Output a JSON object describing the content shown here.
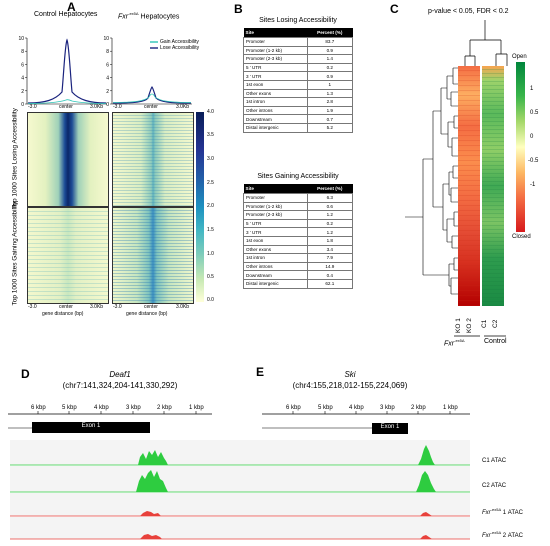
{
  "panel_a": {
    "letter": "A",
    "left_title": "Control Hepatocytes",
    "right_title_gene": "Fxr",
    "right_title_sup": "-ex5Δ",
    "right_title_rest": " Hepatocytes",
    "legend": [
      "Gain Accessibility",
      "Lose Accessibility"
    ],
    "colors": {
      "gain": "#2ec4b6",
      "lose": "#1a237e"
    },
    "y_ticks": [
      "10",
      "8",
      "6",
      "4",
      "2",
      "0"
    ],
    "x_ticks": [
      "-3.0",
      "center",
      "3.0Kb"
    ],
    "row_label_top": "Top 1000 Sites Losing Accessibility",
    "row_label_bottom": "Top 1000 Sites Gaining Accessibility",
    "xlabel": "gene distance (bp)",
    "colorbar_ticks": [
      "4.0",
      "3.5",
      "3.0",
      "2.5",
      "2.0",
      "1.5",
      "1.0",
      "0.5",
      "0.0"
    ]
  },
  "panel_b": {
    "letter": "B",
    "losing": {
      "title": "Sites Losing Accessibility",
      "headers": [
        "Site",
        "Percent (%)"
      ],
      "rows": [
        [
          "Promoter",
          "83.7"
        ],
        [
          "Promoter (1-2 kb)",
          "0.9"
        ],
        [
          "Promoter (2-3 kb)",
          "1.4"
        ],
        [
          "5 ’ UTR",
          "0.2"
        ],
        [
          "3 ’ UTR",
          "0.9"
        ],
        [
          "1st exon",
          "1"
        ],
        [
          "Other exons",
          "1.3"
        ],
        [
          "1st intron",
          "2.8"
        ],
        [
          "Other introns",
          "1.9"
        ],
        [
          "Downstream",
          "0.7"
        ],
        [
          "Distal intergenic",
          "5.2"
        ]
      ]
    },
    "gaining": {
      "title": "Sites Gaining Accessibility",
      "headers": [
        "Site",
        "Percent (%)"
      ],
      "rows": [
        [
          "Promoter",
          "6.3"
        ],
        [
          "Promoter (1-2 kb)",
          "0.6"
        ],
        [
          "Promoter (2-3 kb)",
          "1.2"
        ],
        [
          "5 ’ UTR",
          "0.2"
        ],
        [
          "3 ’ UTR",
          "1.2"
        ],
        [
          "1st exon",
          "1.8"
        ],
        [
          "Other exons",
          "3.4"
        ],
        [
          "1st intron",
          "7.9"
        ],
        [
          "Other introns",
          "14.9"
        ],
        [
          "Downstream",
          "0.4"
        ],
        [
          "Distal intergenic",
          "62.1"
        ]
      ]
    }
  },
  "panel_c": {
    "letter": "C",
    "stats": "p-value < 0.05, FDR < 0.2",
    "scale_open": "Open",
    "scale_closed": "Closed",
    "scale_ticks": [
      "1",
      "0.5",
      "0",
      "-0.5",
      "-1"
    ],
    "columns": [
      "KO 1",
      "KO 2",
      "C1",
      "C2"
    ],
    "group_ko_gene": "Fxr",
    "group_ko_sup": "-ex5Δ",
    "group_control": "Control"
  },
  "panel_d": {
    "letter": "D",
    "gene": "Deaf1",
    "coords": "(chr7:141,324,204-141,330,292)",
    "scale": [
      "6 kbp",
      "5 kbp",
      "4 kbp",
      "3 kbp",
      "2 kbp",
      "1 kbp"
    ],
    "exon": "Exon 1"
  },
  "panel_e": {
    "letter": "E",
    "gene": "Ski",
    "coords": "(chr4:155,218,012-155,224,069)",
    "scale": [
      "6 kbp",
      "5 kbp",
      "4 kbp",
      "3 kbp",
      "2 kbp",
      "1 kbp"
    ],
    "exon": "Exon 1"
  },
  "tracks": {
    "c1": "C1 ATAC",
    "c2": "C2 ATAC",
    "ko_gene": "Fxr",
    "ko_sup": "-ex5Δ",
    "ko1_rest": " 1 ATAC",
    "ko2_rest": " 2 ATAC",
    "colors": {
      "control": "#2ecc40",
      "ko": "#e8413b"
    }
  }
}
